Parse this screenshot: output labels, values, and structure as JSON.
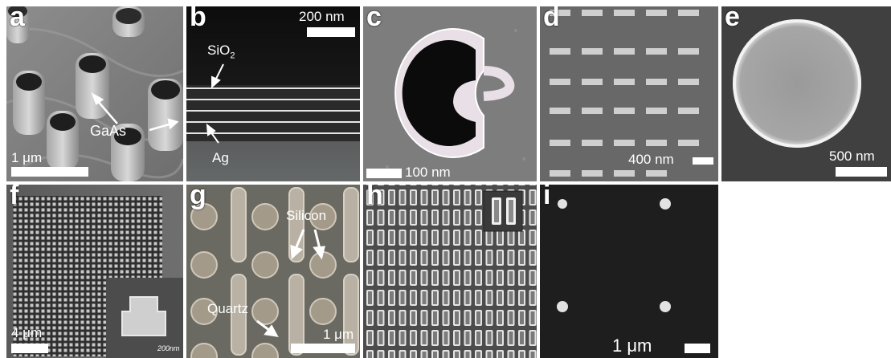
{
  "panels": [
    {
      "label": "a",
      "annotations": [
        "GaAs"
      ],
      "scale_bar": "1 μm"
    },
    {
      "label": "b",
      "annotations": [
        "SiO",
        "2",
        "Ag"
      ],
      "scale_bar": "200 nm"
    },
    {
      "label": "c",
      "annotations": [],
      "scale_bar": "100 nm"
    },
    {
      "label": "d",
      "annotations": [],
      "scale_bar": "400 nm"
    },
    {
      "label": "e",
      "annotations": [],
      "scale_bar": "500 nm"
    },
    {
      "label": "f",
      "annotations": [],
      "scale_bar": "4 μm",
      "inset_scale": "200nm"
    },
    {
      "label": "g",
      "annotations": [
        "Silicon",
        "Quartz"
      ],
      "scale_bar": "1 μm"
    },
    {
      "label": "h",
      "annotations": [],
      "scale_bar": ""
    },
    {
      "label": "i",
      "annotations": [],
      "scale_bar": "1 μm"
    }
  ]
}
